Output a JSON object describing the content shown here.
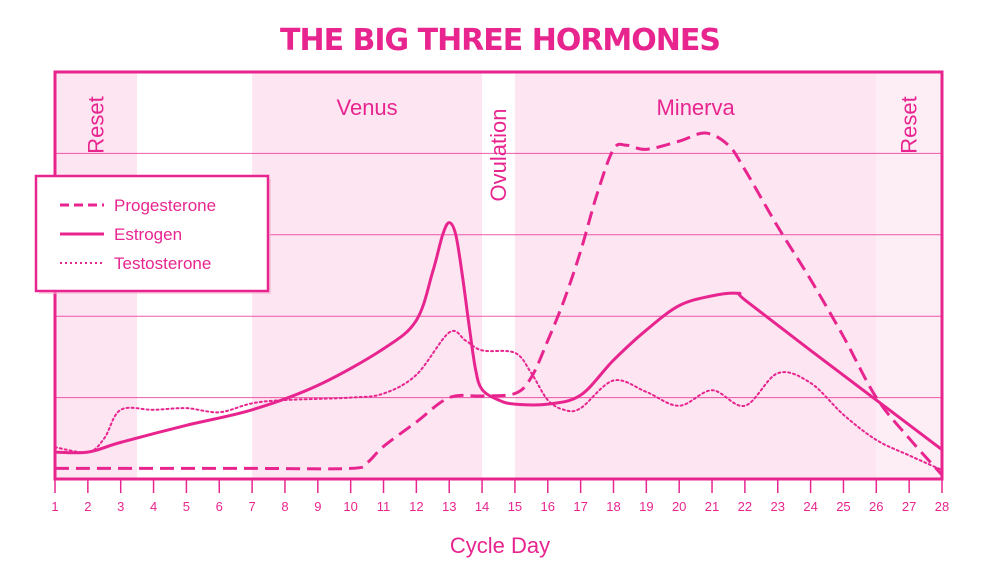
{
  "chart_data": {
    "type": "line",
    "title": "THE BIG THREE HORMONES",
    "xlabel": "Cycle Day",
    "ylabel": "",
    "xlim": [
      1,
      28
    ],
    "ylim": [
      0,
      5
    ],
    "x_ticks": [
      "1",
      "2",
      "3",
      "4",
      "5",
      "6",
      "7",
      "8",
      "9",
      "10",
      "11",
      "12",
      "13",
      "14",
      "15",
      "16",
      "17",
      "18",
      "19",
      "20",
      "21",
      "22",
      "23",
      "24",
      "25",
      "26",
      "27",
      "28"
    ],
    "grid": "horizontal",
    "legend_position": "left",
    "color": "#e8258f",
    "phases": [
      {
        "label": "Reset",
        "from": 1,
        "to": 3.5,
        "shade": "#fde6f2",
        "orientation": "vertical"
      },
      {
        "label": "",
        "from": 3.5,
        "to": 7,
        "shade": "#ffffff"
      },
      {
        "label": "Venus",
        "from": 7,
        "to": 14,
        "shade": "#fde6f2",
        "orientation": "horizontal"
      },
      {
        "label": "Ovulation",
        "from": 14,
        "to": 15,
        "shade": "#ffffff",
        "orientation": "vertical"
      },
      {
        "label": "Minerva",
        "from": 15,
        "to": 26,
        "shade": "#fde6f2",
        "orientation": "horizontal"
      },
      {
        "label": "Reset",
        "from": 26,
        "to": 28,
        "shade": "#fdeef6",
        "orientation": "vertical"
      }
    ],
    "series": [
      {
        "name": "Progesterone",
        "style": "dashed",
        "x": [
          1,
          4,
          7,
          10,
          10.5,
          11,
          12,
          13,
          14,
          15,
          15.5,
          16,
          16.5,
          17,
          17.5,
          18,
          18.4,
          19,
          20,
          20.8,
          21.5,
          22,
          23,
          24,
          25,
          26,
          27,
          28
        ],
        "y": [
          0.13,
          0.13,
          0.13,
          0.13,
          0.2,
          0.4,
          0.7,
          1.0,
          1.02,
          1.05,
          1.25,
          1.7,
          2.2,
          2.8,
          3.5,
          4.05,
          4.1,
          4.05,
          4.15,
          4.25,
          4.1,
          3.8,
          3.1,
          2.45,
          1.75,
          1.0,
          0.5,
          0.05
        ]
      },
      {
        "name": "Estrogen",
        "style": "solid",
        "x": [
          1,
          2,
          3,
          5,
          7,
          9,
          11,
          12,
          12.5,
          12.8,
          13,
          13.2,
          13.4,
          13.6,
          13.8,
          14,
          14.5,
          15,
          16,
          17,
          18,
          19,
          20,
          21,
          21.8,
          22,
          24,
          26,
          28
        ],
        "y": [
          0.33,
          0.33,
          0.45,
          0.66,
          0.85,
          1.15,
          1.6,
          1.95,
          2.55,
          3.0,
          3.15,
          3.0,
          2.5,
          1.9,
          1.35,
          1.1,
          0.97,
          0.92,
          0.92,
          1.03,
          1.46,
          1.83,
          2.13,
          2.25,
          2.28,
          2.2,
          1.58,
          0.97,
          0.36
        ]
      },
      {
        "name": "Testosterone",
        "style": "dotted",
        "x": [
          1,
          2,
          2.5,
          3,
          4,
          5,
          6,
          7,
          8,
          10,
          11,
          12,
          13,
          13.5,
          14,
          15,
          15.5,
          16,
          16.5,
          17,
          18,
          19,
          20,
          21,
          22,
          23,
          24,
          25,
          26,
          27,
          28
        ],
        "y": [
          0.39,
          0.33,
          0.5,
          0.85,
          0.85,
          0.87,
          0.82,
          0.93,
          0.97,
          1.0,
          1.05,
          1.28,
          1.8,
          1.7,
          1.58,
          1.55,
          1.3,
          0.97,
          0.85,
          0.87,
          1.21,
          1.07,
          0.9,
          1.09,
          0.9,
          1.3,
          1.18,
          0.79,
          0.48,
          0.29,
          0.11
        ]
      }
    ]
  }
}
